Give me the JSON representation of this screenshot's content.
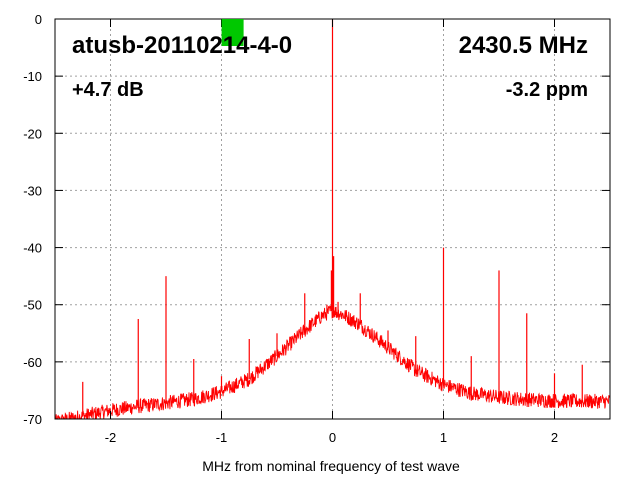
{
  "chart_data": {
    "type": "line",
    "title": "atusb-20110214-4-0",
    "frequency_label": "2430.5 MHz",
    "gain_label": "+4.7 dB",
    "ppm_label": "-3.2 ppm",
    "xlabel": "MHz from nominal frequency of test wave",
    "ylabel": "",
    "xlim": [
      -2.5,
      2.5
    ],
    "ylim": [
      -70,
      0
    ],
    "x_ticks": [
      -2,
      -1,
      0,
      1,
      2
    ],
    "y_ticks": [
      0,
      -10,
      -20,
      -30,
      -40,
      -50,
      -60,
      -70
    ],
    "grid": true,
    "series_color": "#ff0000",
    "indicator_color": "#00c800",
    "indicator_x": -0.9,
    "noise_floor": [
      {
        "x": -2.5,
        "y": -70.5
      },
      {
        "x": -2.25,
        "y": -69.5
      },
      {
        "x": -2.0,
        "y": -68.5
      },
      {
        "x": -1.75,
        "y": -67.8
      },
      {
        "x": -1.5,
        "y": -67.2
      },
      {
        "x": -1.25,
        "y": -66.5
      },
      {
        "x": -1.0,
        "y": -65.2
      },
      {
        "x": -0.75,
        "y": -63.0
      },
      {
        "x": -0.5,
        "y": -59.0
      },
      {
        "x": -0.25,
        "y": -54.5
      },
      {
        "x": -0.1,
        "y": -52.0
      },
      {
        "x": 0.0,
        "y": -51.0
      },
      {
        "x": 0.1,
        "y": -51.8
      },
      {
        "x": 0.25,
        "y": -53.5
      },
      {
        "x": 0.5,
        "y": -57.5
      },
      {
        "x": 0.75,
        "y": -61.5
      },
      {
        "x": 1.0,
        "y": -64.0
      },
      {
        "x": 1.25,
        "y": -65.5
      },
      {
        "x": 1.5,
        "y": -66.2
      },
      {
        "x": 1.75,
        "y": -66.6
      },
      {
        "x": 2.0,
        "y": -66.8
      },
      {
        "x": 2.25,
        "y": -66.9
      },
      {
        "x": 2.5,
        "y": -66.9
      }
    ],
    "spurs": [
      {
        "x": -2.25,
        "y": -63.5
      },
      {
        "x": -1.75,
        "y": -52.5
      },
      {
        "x": -1.5,
        "y": -45.0
      },
      {
        "x": -1.25,
        "y": -59.5
      },
      {
        "x": -1.0,
        "y": -62.5
      },
      {
        "x": -0.75,
        "y": -56.0
      },
      {
        "x": -0.5,
        "y": -55.0
      },
      {
        "x": -0.25,
        "y": -48.0
      },
      {
        "x": -0.05,
        "y": -50.0
      },
      {
        "x": -0.01,
        "y": -44.0
      },
      {
        "x": 0.0,
        "y": 0.0
      },
      {
        "x": 0.01,
        "y": -41.5
      },
      {
        "x": 0.05,
        "y": -49.5
      },
      {
        "x": 0.25,
        "y": -48.0
      },
      {
        "x": 0.5,
        "y": -54.5
      },
      {
        "x": 0.75,
        "y": -55.5
      },
      {
        "x": 1.0,
        "y": -40.0
      },
      {
        "x": 1.25,
        "y": -59.0
      },
      {
        "x": 1.5,
        "y": -44.0
      },
      {
        "x": 1.75,
        "y": -51.5
      },
      {
        "x": 2.0,
        "y": -62.0
      },
      {
        "x": 2.25,
        "y": -60.5
      }
    ]
  }
}
